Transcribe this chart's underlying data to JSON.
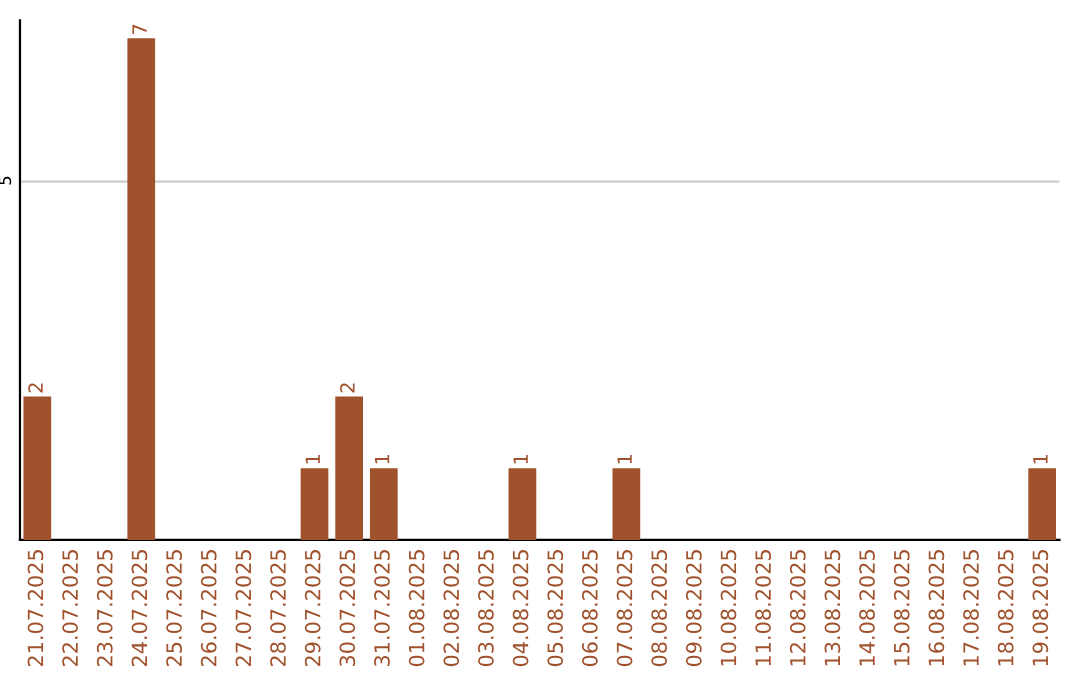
{
  "chart_data": {
    "type": "bar",
    "categories": [
      "21.07.2025",
      "22.07.2025",
      "23.07.2025",
      "24.07.2025",
      "25.07.2025",
      "26.07.2025",
      "27.07.2025",
      "28.07.2025",
      "29.07.2025",
      "30.07.2025",
      "31.07.2025",
      "01.08.2025",
      "02.08.2025",
      "03.08.2025",
      "04.08.2025",
      "05.08.2025",
      "06.08.2025",
      "07.08.2025",
      "08.08.2025",
      "09.08.2025",
      "10.08.2025",
      "11.08.2025",
      "12.08.2025",
      "13.08.2025",
      "14.08.2025",
      "15.08.2025",
      "16.08.2025",
      "17.08.2025",
      "18.08.2025",
      "19.08.2025"
    ],
    "values": [
      2,
      0,
      0,
      7,
      0,
      0,
      0,
      0,
      1,
      2,
      1,
      0,
      0,
      0,
      1,
      0,
      0,
      1,
      0,
      0,
      0,
      0,
      0,
      0,
      0,
      0,
      0,
      0,
      0,
      1
    ],
    "value_labels": [
      "2",
      null,
      null,
      "7",
      null,
      null,
      null,
      null,
      "1",
      "2",
      "1",
      null,
      null,
      null,
      "1",
      null,
      null,
      "1",
      null,
      null,
      null,
      null,
      null,
      null,
      null,
      null,
      null,
      null,
      null,
      "1"
    ],
    "color": "#a0522d",
    "ylim": [
      0,
      7.25
    ],
    "yticks": [
      5
    ],
    "grid": "y"
  }
}
